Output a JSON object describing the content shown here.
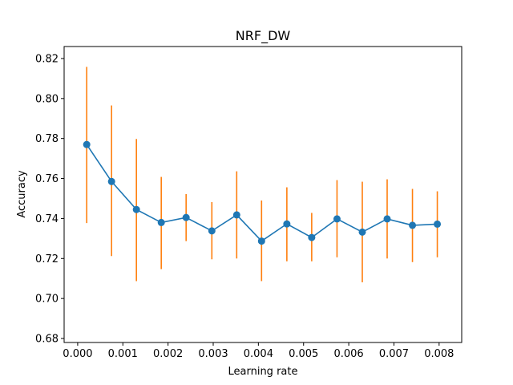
{
  "chart_data": {
    "type": "line",
    "title": "NRF_DW",
    "xlabel": "Learning rate",
    "ylabel": "Accuracy",
    "xlim": [
      -0.0003,
      0.0085
    ],
    "ylim": [
      0.678,
      0.826
    ],
    "xticks": [
      0.0,
      0.001,
      0.002,
      0.003,
      0.004,
      0.005,
      0.006,
      0.007,
      0.008
    ],
    "xtick_labels": [
      "0.000",
      "0.001",
      "0.002",
      "0.003",
      "0.004",
      "0.005",
      "0.006",
      "0.007",
      "0.008"
    ],
    "yticks": [
      0.68,
      0.7,
      0.72,
      0.74,
      0.76,
      0.78,
      0.8,
      0.82
    ],
    "ytick_labels": [
      "0.68",
      "0.70",
      "0.72",
      "0.74",
      "0.76",
      "0.78",
      "0.80",
      "0.82"
    ],
    "grid": false,
    "series": [
      {
        "line_color": "#1f77b4",
        "error_color": "#ff7f0e",
        "x": [
          0.0002,
          0.00075,
          0.0013,
          0.00185,
          0.0024,
          0.00297,
          0.00352,
          0.00407,
          0.00463,
          0.00518,
          0.00574,
          0.0063,
          0.00685,
          0.00741,
          0.00796
        ],
        "y": [
          0.777,
          0.7585,
          0.7445,
          0.738,
          0.7405,
          0.7338,
          0.7418,
          0.7287,
          0.7373,
          0.7305,
          0.7398,
          0.7332,
          0.7398,
          0.7366,
          0.7372
        ],
        "yerr_low": [
          0.7377,
          0.7212,
          0.7087,
          0.7147,
          0.7287,
          0.7196,
          0.72,
          0.7087,
          0.7186,
          0.7186,
          0.7206,
          0.7081,
          0.72,
          0.7182,
          0.7206
        ],
        "yerr_high": [
          0.8158,
          0.7965,
          0.7798,
          0.7608,
          0.7522,
          0.7482,
          0.7636,
          0.749,
          0.7556,
          0.7428,
          0.7592,
          0.7584,
          0.7596,
          0.7548,
          0.7536
        ]
      }
    ]
  }
}
